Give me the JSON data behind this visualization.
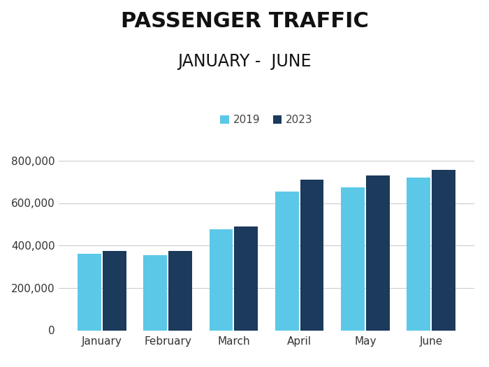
{
  "title_line1": "PASSENGER TRAFFIC",
  "title_line2": "JANUARY -  JUNE",
  "categories": [
    "January",
    "February",
    "March",
    "April",
    "May",
    "June"
  ],
  "values_2019": [
    360000,
    355000,
    475000,
    655000,
    675000,
    720000
  ],
  "values_2023": [
    375000,
    375000,
    490000,
    710000,
    730000,
    755000
  ],
  "color_2019": "#5BC8E8",
  "color_2023": "#1B3A5C",
  "legend_labels": [
    "2019",
    "2023"
  ],
  "ylim": [
    0,
    900000
  ],
  "yticks": [
    0,
    200000,
    400000,
    600000,
    800000
  ],
  "background_color": "#ffffff",
  "grid_color": "#cccccc",
  "title1_fontsize": 22,
  "title2_fontsize": 17,
  "tick_fontsize": 11,
  "legend_fontsize": 11,
  "bar_width": 0.36,
  "bar_gap": 0.02
}
